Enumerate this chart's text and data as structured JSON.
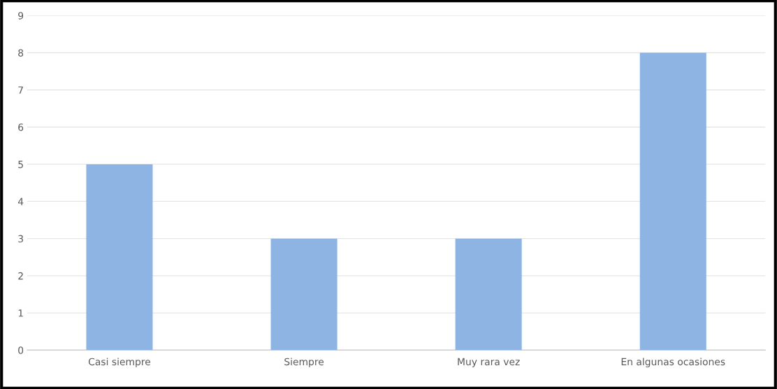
{
  "chart_data": {
    "type": "bar",
    "categories": [
      "Casi siempre",
      "Siempre",
      "Muy rara vez",
      "En algunas ocasiones"
    ],
    "values": [
      5,
      3,
      3,
      8
    ],
    "color": "#8db4e2",
    "ylim": [
      0,
      9
    ],
    "yticks": [
      0,
      1,
      2,
      3,
      4,
      5,
      6,
      7,
      8,
      9
    ],
    "grid": "y"
  }
}
